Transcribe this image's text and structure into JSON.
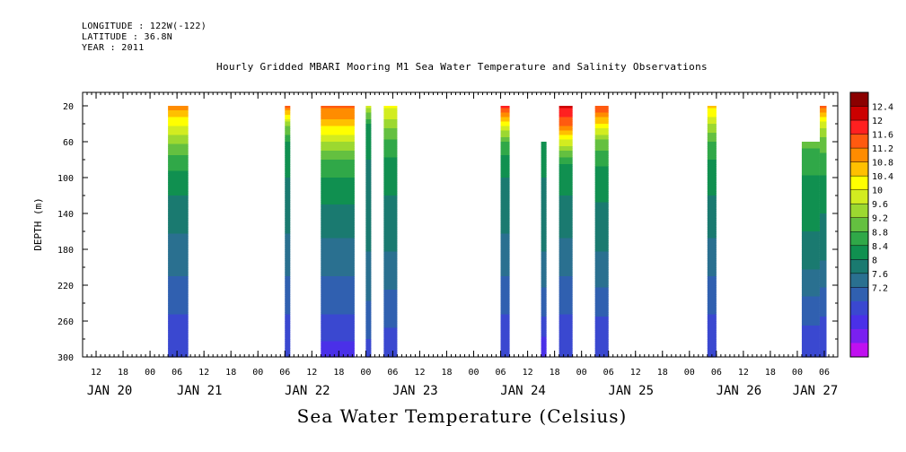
{
  "header": {
    "longitude": "LONGITUDE : 122W(-122)",
    "latitude": "LATITUDE : 36.8N",
    "year": "YEAR : 2011"
  },
  "chart_data": {
    "type": "heatmap",
    "title": "Hourly Gridded MBARI Mooring M1 Sea Water Temperature and Salinity Observations",
    "xlabel": "Sea Water Temperature (Celsius)",
    "ylabel": "DEPTH (m)",
    "x_unit": "hours since JAN 20 00:00",
    "xlim": [
      9,
      177
    ],
    "ylim": [
      300,
      5
    ],
    "y_ticks": [
      20,
      60,
      100,
      140,
      180,
      220,
      260,
      300
    ],
    "x_hour_ticks": [
      {
        "h": 12,
        "label": "12"
      },
      {
        "h": 18,
        "label": "18"
      },
      {
        "h": 24,
        "label": "00"
      },
      {
        "h": 30,
        "label": "06"
      },
      {
        "h": 36,
        "label": "12"
      },
      {
        "h": 42,
        "label": "18"
      },
      {
        "h": 48,
        "label": "00"
      },
      {
        "h": 54,
        "label": "06"
      },
      {
        "h": 60,
        "label": "12"
      },
      {
        "h": 66,
        "label": "18"
      },
      {
        "h": 72,
        "label": "00"
      },
      {
        "h": 78,
        "label": "06"
      },
      {
        "h": 84,
        "label": "12"
      },
      {
        "h": 90,
        "label": "18"
      },
      {
        "h": 96,
        "label": "00"
      },
      {
        "h": 102,
        "label": "06"
      },
      {
        "h": 108,
        "label": "12"
      },
      {
        "h": 114,
        "label": "18"
      },
      {
        "h": 120,
        "label": "00"
      },
      {
        "h": 126,
        "label": "06"
      },
      {
        "h": 132,
        "label": "12"
      },
      {
        "h": 138,
        "label": "18"
      },
      {
        "h": 144,
        "label": "00"
      },
      {
        "h": 150,
        "label": "06"
      },
      {
        "h": 156,
        "label": "12"
      },
      {
        "h": 162,
        "label": "18"
      },
      {
        "h": 168,
        "label": "00"
      },
      {
        "h": 174,
        "label": "06"
      }
    ],
    "day_labels": [
      {
        "h": 15,
        "label": "JAN 20"
      },
      {
        "h": 35,
        "label": "JAN 21"
      },
      {
        "h": 59,
        "label": "JAN 22"
      },
      {
        "h": 83,
        "label": "JAN 23"
      },
      {
        "h": 107,
        "label": "JAN 24"
      },
      {
        "h": 131,
        "label": "JAN 25"
      },
      {
        "h": 155,
        "label": "JAN 26"
      },
      {
        "h": 172,
        "label": "JAN 27"
      }
    ],
    "colorbar_levels": [
      "12.4",
      "12",
      "11.6",
      "11.2",
      "10.8",
      "10.4",
      "10",
      "9.6",
      "9.2",
      "8.8",
      "8.4",
      "8",
      "7.6",
      "7.2"
    ],
    "colorbar_colors": [
      "#8b0000",
      "#cc0000",
      "#ff2020",
      "#ff5a10",
      "#ff8c00",
      "#ffc000",
      "#ffff00",
      "#d2ec20",
      "#9cd830",
      "#64c040",
      "#30a848",
      "#109050",
      "#1a7a70",
      "#2a7090",
      "#3060b0",
      "#3a48d0",
      "#4a30e8",
      "#7a20f0",
      "#c010f0"
    ],
    "profile_depths": [
      20,
      40,
      60,
      80,
      100,
      140,
      180,
      220,
      260,
      300
    ],
    "series": [
      {
        "start_h": 28,
        "end_h": 32.5,
        "temps": [
          11.4,
          10.6,
          10.0,
          9.5,
          9.2,
          8.8,
          8.6,
          8.3,
          8.0,
          7.8
        ]
      },
      {
        "start_h": 54,
        "end_h": 55.2,
        "temps": [
          11.6,
          10.0,
          9.3,
          9.1,
          9.0,
          8.8,
          8.6,
          8.3,
          8.0,
          7.8
        ]
      },
      {
        "start_h": 62,
        "end_h": 69.5,
        "temps": [
          11.6,
          11.0,
          10.2,
          9.6,
          9.3,
          8.9,
          8.6,
          8.3,
          8.0,
          7.5
        ]
      },
      {
        "start_h": 72,
        "end_h": 73.2,
        "temps": [
          10.3,
          9.3,
          9.1,
          9.0,
          8.9,
          8.8,
          8.7,
          8.5,
          8.2,
          7.9
        ]
      },
      {
        "start_h": 76,
        "end_h": 79,
        "temps": [
          10.6,
          10.1,
          9.5,
          9.3,
          9.1,
          8.9,
          8.7,
          8.4,
          8.1,
          7.9
        ]
      },
      {
        "start_h": 102,
        "end_h": 104,
        "temps": [
          12.0,
          10.6,
          9.6,
          9.2,
          9.0,
          8.8,
          8.6,
          8.3,
          8.0,
          7.8
        ]
      },
      {
        "start_h": 111,
        "end_h": 112.2,
        "start_depth": 60,
        "temps": [
          null,
          null,
          9.2,
          9.1,
          9.0,
          8.9,
          8.7,
          8.4,
          8.0,
          7.4
        ]
      },
      {
        "start_h": 115,
        "end_h": 118,
        "temps": [
          12.2,
          11.6,
          10.4,
          9.4,
          9.1,
          8.9,
          8.6,
          8.3,
          8.0,
          7.8
        ]
      },
      {
        "start_h": 123,
        "end_h": 126,
        "temps": [
          11.8,
          10.8,
          9.8,
          9.4,
          9.2,
          8.9,
          8.7,
          8.4,
          8.0,
          7.8
        ]
      },
      {
        "start_h": 148,
        "end_h": 150,
        "temps": [
          11.0,
          10.2,
          9.6,
          9.3,
          9.1,
          8.9,
          8.6,
          8.3,
          8.0,
          7.8
        ]
      },
      {
        "start_h": 169,
        "end_h": 173,
        "start_depth": 60,
        "temps": [
          null,
          null,
          9.7,
          9.5,
          9.3,
          9.1,
          8.9,
          8.5,
          8.1,
          7.8
        ]
      },
      {
        "start_h": 173,
        "end_h": 174.5,
        "temps": [
          11.6,
          10.4,
          9.8,
          9.5,
          9.3,
          9.0,
          8.8,
          8.4,
          8.0,
          7.8
        ]
      }
    ]
  }
}
